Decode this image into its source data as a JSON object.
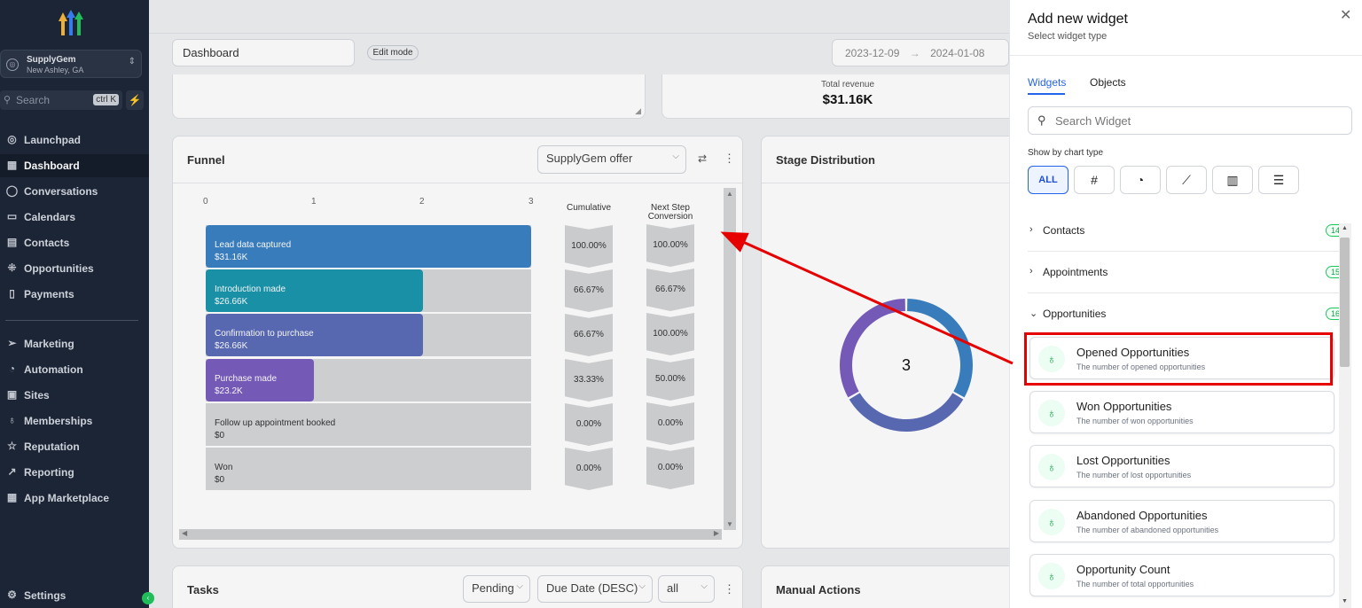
{
  "sidebar": {
    "account": {
      "name": "SupplyGem",
      "location": "New Ashley, GA"
    },
    "search": {
      "placeholder": "Search",
      "shortcut": "ctrl K"
    },
    "items": [
      {
        "label": "Launchpad",
        "icon": "rocket-icon"
      },
      {
        "label": "Dashboard",
        "icon": "dashboard-grid-icon",
        "active": true
      },
      {
        "label": "Conversations",
        "icon": "chat-bubble-icon"
      },
      {
        "label": "Calendars",
        "icon": "calendar-icon"
      },
      {
        "label": "Contacts",
        "icon": "contacts-card-icon"
      },
      {
        "label": "Opportunities",
        "icon": "opportunities-network-icon"
      },
      {
        "label": "Payments",
        "icon": "payments-receipt-icon"
      },
      {
        "label": "Marketing",
        "icon": "send-plane-icon"
      },
      {
        "label": "Automation",
        "icon": "automation-icon"
      },
      {
        "label": "Sites",
        "icon": "sites-browser-icon"
      },
      {
        "label": "Memberships",
        "icon": "memberships-award-icon"
      },
      {
        "label": "Reputation",
        "icon": "star-icon"
      },
      {
        "label": "Reporting",
        "icon": "trend-chart-icon"
      },
      {
        "label": "App Marketplace",
        "icon": "app-grid-icon"
      }
    ],
    "settings": "Settings"
  },
  "header": {
    "dashboard_name": "Dashboard",
    "edit_mode": "Edit mode",
    "date_from": "2023-12-09",
    "date_arrow": "→",
    "date_to": "2024-01-08"
  },
  "revenue": {
    "label": "Total revenue",
    "value": "$31.16K"
  },
  "funnel": {
    "title": "Funnel",
    "filter": "SupplyGem offer",
    "col_cumulative": "Cumulative",
    "col_next_step": "Next Step Conversion",
    "chart_data": {
      "type": "bar",
      "x_ticks": [
        "0",
        "1",
        "2",
        "3"
      ],
      "xlim": [
        0,
        3
      ],
      "stages": [
        {
          "name": "Lead data captured",
          "value_label": "$31.16K",
          "count": 3,
          "color": "#3b82c4",
          "cumulative": "100.00%",
          "next_step": "100.00%"
        },
        {
          "name": "Introduction made",
          "value_label": "$26.66K",
          "count": 2,
          "color": "#1b96ad",
          "cumulative": "66.67%",
          "next_step": "66.67%"
        },
        {
          "name": "Confirmation to purchase",
          "value_label": "$26.66K",
          "count": 2,
          "color": "#5b6cb8",
          "cumulative": "66.67%",
          "next_step": "100.00%"
        },
        {
          "name": "Purchase made",
          "value_label": "$23.2K",
          "count": 1,
          "color": "#7a5dbf",
          "cumulative": "33.33%",
          "next_step": "50.00%"
        },
        {
          "name": "Follow up appointment booked",
          "value_label": "$0",
          "count": 0,
          "color": "#d6d7d9",
          "cumulative": "0.00%",
          "next_step": "0.00%"
        },
        {
          "name": "Won",
          "value_label": "$0",
          "count": 0,
          "color": "#d6d7d9",
          "cumulative": "0.00%",
          "next_step": "0.00%"
        }
      ]
    }
  },
  "stage_distribution": {
    "title": "Stage Distribution",
    "center_value": "3",
    "chart_data": {
      "type": "pie",
      "slices": [
        {
          "label": "Lead data captured",
          "value": 1,
          "color": "#3b82c4"
        },
        {
          "label": "Confirmation to purchase",
          "value": 1,
          "color": "#5b6cb8"
        },
        {
          "label": "Purchase made",
          "value": 1,
          "color": "#7a5dbf"
        }
      ]
    }
  },
  "tasks": {
    "title": "Tasks",
    "status": "Pending",
    "sort": "Due Date (DESC)",
    "filter": "all"
  },
  "manual_actions": {
    "title": "Manual Actions"
  },
  "panel": {
    "title": "Add new widget",
    "subtitle": "Select widget type",
    "tabs": [
      "Widgets",
      "Objects"
    ],
    "search_placeholder": "Search Widget",
    "show_by": "Show by chart type",
    "chart_types": [
      {
        "label": "ALL",
        "icon": "all-text"
      },
      {
        "label": "#",
        "icon": "hash-icon"
      },
      {
        "label": "◔",
        "icon": "pie-chart-icon"
      },
      {
        "label": "⟋",
        "icon": "line-chart-icon"
      },
      {
        "label": "▥",
        "icon": "bar-chart-icon"
      },
      {
        "label": "☰",
        "icon": "horizontal-bar-chart-icon"
      }
    ],
    "categories": [
      {
        "name": "Contacts",
        "count": "14"
      },
      {
        "name": "Appointments",
        "count": "15"
      },
      {
        "name": "Opportunities",
        "count": "16"
      }
    ],
    "widgets": [
      {
        "title": "Opened Opportunities",
        "desc": "The number of opened opportunities"
      },
      {
        "title": "Won Opportunities",
        "desc": "The number of won opportunities"
      },
      {
        "title": "Lost Opportunities",
        "desc": "The number of lost opportunities"
      },
      {
        "title": "Abandoned Opportunities",
        "desc": "The number of abandoned opportunities"
      },
      {
        "title": "Opportunity Count",
        "desc": "The number of total opportunities"
      }
    ]
  },
  "colors": {
    "sidebar": "#1e2738",
    "accent": "#2563eb",
    "highlight": "#e60000",
    "success": "#22c55e"
  }
}
